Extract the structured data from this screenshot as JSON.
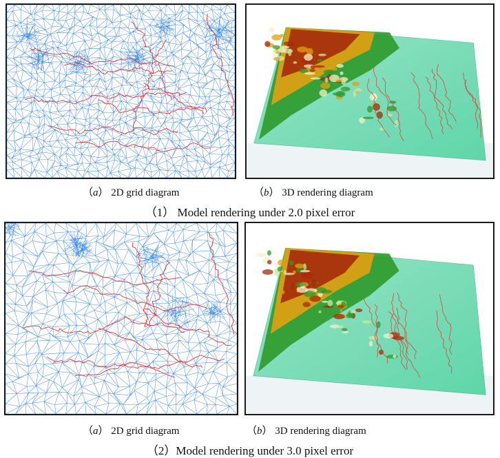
{
  "figures": [
    {
      "grid_caption": {
        "open": "（",
        "letter": "a",
        "close": "）",
        "text": "2D grid diagram"
      },
      "render_caption": {
        "open": "（",
        "letter": "b",
        "close": "）",
        "text": "3D rendering diagram"
      },
      "title": "（1） Model rendering under 2.0 pixel error"
    },
    {
      "grid_caption": {
        "open": "（",
        "letter": "a",
        "close": "）",
        "text": "2D grid diagram"
      },
      "render_caption": {
        "open": "（",
        "letter": "b",
        "close": "）",
        "text": "3D rendering diagram"
      },
      "title": "（2）Model rendering under 3.0 pixel error"
    }
  ],
  "colors": {
    "mesh": "#2f7fe0",
    "river": "#e8332e",
    "terrain_base": "#86e2bf",
    "terrain_high": "#a52a0a",
    "terrain_mid": "#e2a012",
    "terrain_green": "#2f9a2a"
  }
}
